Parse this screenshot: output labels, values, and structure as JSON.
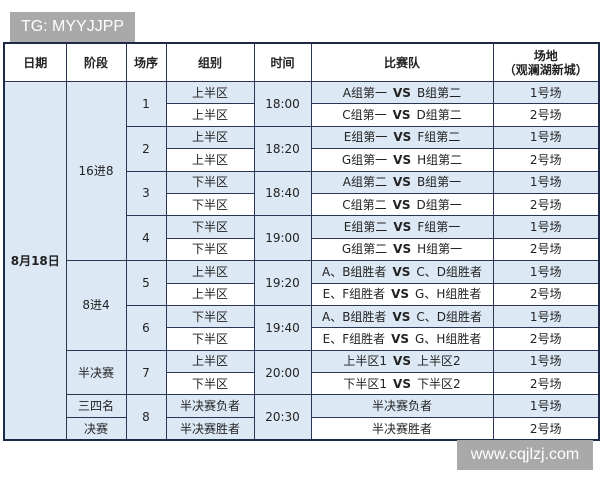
{
  "watermarks": {
    "top_left": "TG: MYYJJPP",
    "bottom_right": "www.cqjlzj.com"
  },
  "headers": [
    "日期",
    "阶段",
    "场序",
    "组别",
    "时间",
    "比赛队",
    "场地",
    "（观澜湖新城）"
  ],
  "date": "8月18日",
  "stages": {
    "s1": "16进8",
    "s2": "8进4",
    "s3": "半决赛",
    "s4": "三四名",
    "s5": "决赛"
  },
  "vs": "VS",
  "matches": [
    {
      "seq": "1",
      "time": "18:00",
      "rows": [
        {
          "group": "上半区",
          "a": "A组第一",
          "b": "B组第二",
          "venue": "1号场"
        },
        {
          "group": "上半区",
          "a": "C组第一",
          "b": "D组第二",
          "venue": "2号场"
        }
      ]
    },
    {
      "seq": "2",
      "time": "18:20",
      "rows": [
        {
          "group": "上半区",
          "a": "E组第一",
          "b": "F组第二",
          "venue": "1号场"
        },
        {
          "group": "上半区",
          "a": "G组第一",
          "b": "H组第二",
          "venue": "2号场"
        }
      ]
    },
    {
      "seq": "3",
      "time": "18:40",
      "rows": [
        {
          "group": "下半区",
          "a": "A组第二",
          "b": "B组第一",
          "venue": "1号场"
        },
        {
          "group": "下半区",
          "a": "C组第二",
          "b": "D组第一",
          "venue": "2号场"
        }
      ]
    },
    {
      "seq": "4",
      "time": "19:00",
      "rows": [
        {
          "group": "下半区",
          "a": "E组第二",
          "b": "F组第一",
          "venue": "1号场"
        },
        {
          "group": "下半区",
          "a": "G组第二",
          "b": "H组第一",
          "venue": "2号场"
        }
      ]
    },
    {
      "seq": "5",
      "time": "19:20",
      "rows": [
        {
          "group": "上半区",
          "a": "A、B组胜者",
          "b": "C、D组胜者",
          "venue": "1号场"
        },
        {
          "group": "上半区",
          "a": "E、F组胜者",
          "b": "G、H组胜者",
          "venue": "2号场"
        }
      ]
    },
    {
      "seq": "6",
      "time": "19:40",
      "rows": [
        {
          "group": "下半区",
          "a": "A、B组胜者",
          "b": "C、D组胜者",
          "venue": "1号场"
        },
        {
          "group": "下半区",
          "a": "E、F组胜者",
          "b": "G、H组胜者",
          "venue": "2号场"
        }
      ]
    },
    {
      "seq": "7",
      "time": "20:00",
      "rows": [
        {
          "group": "上半区",
          "a": "上半区1",
          "b": "上半区2",
          "venue": "1号场"
        },
        {
          "group": "下半区",
          "a": "下半区1",
          "b": "下半区2",
          "venue": "2号场"
        }
      ]
    },
    {
      "seq": "8",
      "time": "20:30",
      "rows": [
        {
          "group": "半决赛负者",
          "team": "半决赛负者",
          "venue": "1号场"
        },
        {
          "group": "半决赛胜者",
          "team": "半决赛胜者",
          "venue": "2号场"
        }
      ]
    }
  ],
  "colors": {
    "shade": "#dce8f4",
    "border": "#1c2a48",
    "watermark": "#a9a9a9"
  }
}
